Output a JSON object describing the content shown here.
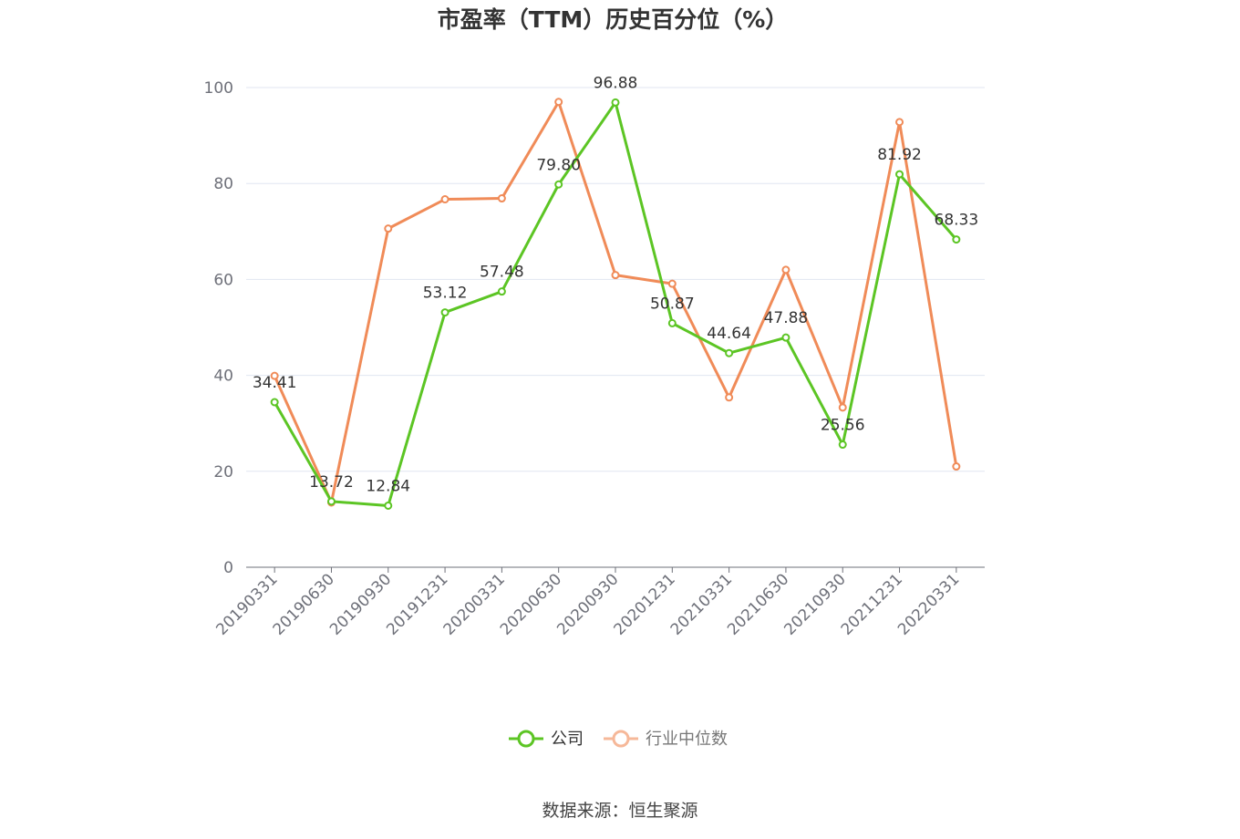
{
  "chart_data": {
    "type": "line",
    "title": "市盈率（TTM）历史百分位（%）",
    "xlabel": "",
    "ylabel": "",
    "ylim": [
      0,
      100
    ],
    "y_ticks": [
      "0",
      "20",
      "40",
      "60",
      "80",
      "100"
    ],
    "categories": [
      "20190331",
      "20190630",
      "20190930",
      "20191231",
      "20200331",
      "20200630",
      "20200930",
      "20201231",
      "20210331",
      "20210630",
      "20210930",
      "20211231",
      "20220331"
    ],
    "series": [
      {
        "name": "公司",
        "color": "#5cc524",
        "values": [
          34.41,
          13.72,
          12.84,
          53.12,
          57.48,
          79.8,
          96.88,
          50.87,
          44.64,
          47.88,
          25.56,
          81.92,
          68.33
        ],
        "labels": [
          "34.41",
          "13.72",
          "12.84",
          "53.12",
          "57.48",
          "79.80",
          "96.88",
          "50.87",
          "44.64",
          "47.88",
          "25.56",
          "81.92",
          "68.33"
        ]
      },
      {
        "name": "行业中位数",
        "color": "#f08b58",
        "values": [
          39.9,
          13.5,
          70.6,
          76.7,
          76.9,
          97.0,
          60.9,
          59.1,
          35.4,
          62.0,
          33.3,
          92.8,
          21.0
        ]
      }
    ],
    "legend": {
      "position": "bottom-center",
      "items": [
        "公司",
        "行业中位数"
      ]
    },
    "grid": true
  },
  "source": "数据来源：恒生聚源"
}
